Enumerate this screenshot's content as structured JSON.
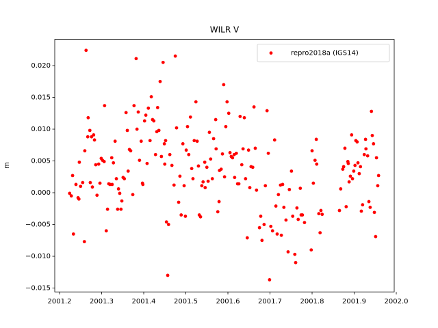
{
  "chart_data": {
    "type": "scatter",
    "title": "WILR V",
    "y_label": "m",
    "legend": "upper right",
    "grid": false,
    "xlim": [
      2001.1886,
      2001.9951
    ],
    "ylim": [
      -0.01561,
      0.02413
    ],
    "xticks": [
      2001.2,
      2001.3,
      2001.4,
      2001.5,
      2001.6,
      2001.7,
      2001.8,
      2001.9,
      {
        "value": 2002.0,
        "label": "2002.0"
      }
    ],
    "yticks": [
      {
        "value": -0.015,
        "label": "−0.015"
      },
      {
        "value": -0.01,
        "label": "−0.010"
      },
      {
        "value": -0.005,
        "label": "−0.005"
      },
      {
        "value": 0,
        "label": "0.000"
      },
      {
        "value": 0.005,
        "label": "0.005"
      },
      {
        "value": 0.01,
        "label": "0.010"
      },
      {
        "value": 0.015,
        "label": "0.015"
      },
      {
        "value": 0.02,
        "label": "0.020"
      }
    ],
    "series": [
      {
        "name": "repro2018a (IGS14)",
        "color": "#ff0000",
        "x": [
          2001.224,
          2001.228,
          2001.231,
          2001.233,
          2001.239,
          2001.244,
          2001.246,
          2001.247,
          2001.25,
          2001.255,
          2001.259,
          2001.26,
          2001.263,
          2001.267,
          2001.268,
          2001.272,
          2001.273,
          2001.276,
          2001.278,
          2001.281,
          2001.283,
          2001.286,
          2001.289,
          2001.293,
          2001.296,
          2001.299,
          2001.302,
          2001.306,
          2001.307,
          2001.311,
          2001.314,
          2001.317,
          2001.32,
          2001.324,
          2001.325,
          2001.328,
          2001.332,
          2001.335,
          2001.338,
          2001.34,
          2001.343,
          2001.346,
          2001.348,
          2001.351,
          2001.354,
          2001.358,
          2001.361,
          2001.363,
          2001.366,
          2001.369,
          2001.374,
          2001.377,
          2001.382,
          2001.384,
          2001.387,
          2001.39,
          2001.394,
          2001.397,
          2001.398,
          2001.402,
          2001.405,
          2001.408,
          2001.411,
          2001.415,
          2001.418,
          2001.421,
          2001.424,
          2001.428,
          2001.431,
          2001.433,
          2001.436,
          2001.439,
          2001.442,
          2001.446,
          2001.449,
          2001.45,
          2001.452,
          2001.454,
          2001.459,
          2001.457,
          2001.462,
          2001.467,
          2001.472,
          2001.475,
          2001.478,
          2001.483,
          2001.486,
          2001.489,
          2001.493,
          2001.496,
          2001.499,
          2001.501,
          2001.504,
          2001.507,
          2001.511,
          2001.514,
          2001.517,
          2001.52,
          2001.524,
          2001.527,
          2001.53,
          2001.532,
          2001.535,
          2001.538,
          2001.541,
          2001.545,
          2001.546,
          2001.55,
          2001.553,
          2001.556,
          2001.559,
          2001.563,
          2001.566,
          2001.571,
          2001.572,
          2001.576,
          2001.579,
          2001.58,
          2001.584,
          2001.587,
          2001.59,
          2001.592,
          2001.595,
          2001.598,
          2001.602,
          2001.605,
          2001.608,
          2001.611,
          2001.615,
          2001.616,
          2001.62,
          2001.623,
          2001.626,
          2001.629,
          2001.633,
          2001.636,
          2001.639,
          2001.642,
          2001.646,
          2001.649,
          2001.652,
          2001.655,
          2001.659,
          2001.662,
          2001.665,
          2001.668,
          2001.675,
          2001.678,
          2001.681,
          2001.686,
          2001.689,
          2001.693,
          2001.696,
          2001.699,
          2001.702,
          2001.706,
          2001.711,
          2001.714,
          2001.717,
          2001.72,
          2001.725,
          2001.727,
          2001.73,
          2001.733,
          2001.738,
          2001.743,
          2001.746,
          2001.751,
          2001.754,
          2001.759,
          2001.761,
          2001.764,
          2001.767,
          2001.772,
          2001.774,
          2001.777,
          2001.782,
          2001.798,
          2001.8,
          2001.803,
          2001.807,
          2001.81,
          2001.811,
          2001.816,
          2001.819,
          2001.821,
          2001.824,
          2001.865,
          2001.868,
          2001.873,
          2001.875,
          2001.878,
          2001.881,
          2001.885,
          2001.886,
          2001.888,
          2001.891,
          2001.894,
          2001.896,
          2001.899,
          2001.902,
          2001.904,
          2001.907,
          2001.909,
          2001.912,
          2001.915,
          2001.917,
          2001.92,
          2001.924,
          2001.927,
          2001.928,
          2001.932,
          2001.935,
          2001.938,
          2001.941,
          2001.943,
          2001.946,
          2001.948,
          2001.951,
          2001.953,
          2001.956,
          2001.958
        ],
        "values": [
          -0.0001,
          -0.0005,
          0.0027,
          -0.0065,
          0.0013,
          -0.0008,
          -0.001,
          0.0048,
          0.001,
          0.0016,
          -0.0077,
          0.0066,
          0.0224,
          0.0088,
          0.0118,
          0.0098,
          0.0016,
          0.0088,
          0.0009,
          0.0091,
          0.0083,
          0.0044,
          -0.0004,
          0.0045,
          0.0015,
          0.0054,
          0.0051,
          0.0049,
          0.0137,
          -0.006,
          -0.0026,
          0.0014,
          0.0013,
          0.0055,
          0.0013,
          0.0047,
          0.0081,
          0.0022,
          -0.0026,
          0.0006,
          -0.0001,
          -0.0026,
          -0.0013,
          0.0024,
          0.0022,
          0.0126,
          0.0098,
          0.0034,
          0.0068,
          0.0066,
          -0.0003,
          0.0137,
          0.0211,
          0.01,
          0.0127,
          0.0051,
          0.0081,
          0.0015,
          0.0013,
          0.0113,
          0.0122,
          0.0046,
          0.0133,
          0.0082,
          0.0151,
          0.0115,
          0.0113,
          0.006,
          0.0096,
          0.0134,
          0.0098,
          0.0175,
          0.0057,
          0.0205,
          0.0077,
          0.0045,
          0.0082,
          -0.0046,
          -0.005,
          -0.013,
          0.006,
          0.0043,
          0.0012,
          0.0215,
          0.0102,
          -0.0015,
          0.0026,
          -0.0035,
          0.0077,
          0.0011,
          -0.0037,
          0.0067,
          0.0104,
          0.006,
          0.0119,
          0.0038,
          0.0022,
          0.0082,
          0.0143,
          0.0081,
          0.0042,
          -0.0035,
          -0.0038,
          0.0011,
          0.0017,
          0.0048,
          0.0008,
          0.004,
          0.0018,
          0.0095,
          0.0053,
          0.0022,
          0.0085,
          0.0115,
          0.0069,
          -0.003,
          -0.0014,
          0.0035,
          0.0037,
          0.0061,
          0.017,
          0.0025,
          0.0104,
          0.0143,
          0.0125,
          0.0063,
          0.0057,
          0.0055,
          0.006,
          0.0024,
          0.0062,
          0.0014,
          0.0014,
          0.012,
          0.0044,
          0.0069,
          0.0118,
          0.0022,
          -0.0071,
          0.0067,
          0.0008,
          0.0041,
          0.004,
          0.0135,
          0.007,
          0.0004,
          -0.0055,
          -0.0037,
          -0.0075,
          -0.005,
          0.0011,
          0.0129,
          0.0062,
          -0.0137,
          -0.0053,
          -0.006,
          0.0083,
          -0.0021,
          -0.0065,
          -0.0003,
          0.0012,
          -0.0067,
          0.0013,
          -0.0023,
          -0.0043,
          -0.0093,
          0.0005,
          0.0034,
          -0.0037,
          -0.0097,
          -0.011,
          -0.0024,
          -0.0042,
          0.0007,
          -0.0035,
          -0.0035,
          -0.0047,
          -0.009,
          0.0066,
          0.0015,
          0.0051,
          0.0084,
          0.0045,
          -0.0033,
          -0.0063,
          -0.0028,
          -0.0034,
          -0.0028,
          0.0006,
          0.0037,
          0.0041,
          0.007,
          -0.0022,
          0.0049,
          0.0046,
          0.0017,
          0.0026,
          0.0091,
          0.0022,
          0.0034,
          0.0043,
          0.0082,
          0.008,
          0.0047,
          0.003,
          0.0041,
          -0.0029,
          -0.0019,
          0.006,
          0.0084,
          0.0069,
          0.0058,
          -0.0014,
          -0.0023,
          0.0128,
          0.009,
          0.0077,
          -0.0031,
          -0.0069,
          0.0055,
          0.0011,
          0.0027
        ]
      }
    ]
  }
}
